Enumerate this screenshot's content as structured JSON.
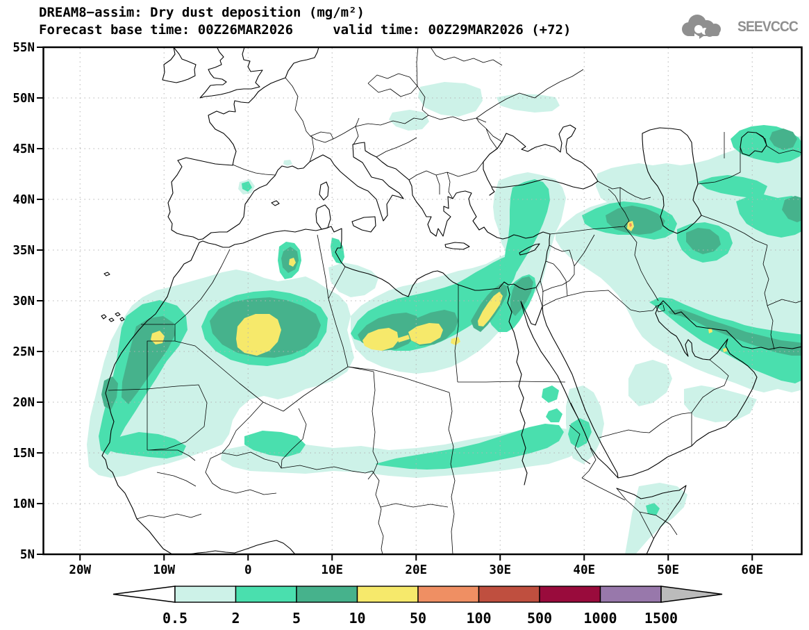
{
  "header": {
    "title_line1": "DREAM8−assim: Dry dust deposition (mg/m²)",
    "title_line2": "Forecast base time: 00Z26MAR2026     valid time: 00Z29MAR2026 (+72)",
    "logo_text": "SEEVCCC"
  },
  "map": {
    "lat_ticks": [
      {
        "label": "55N",
        "deg": 55
      },
      {
        "label": "50N",
        "deg": 50
      },
      {
        "label": "45N",
        "deg": 45
      },
      {
        "label": "40N",
        "deg": 40
      },
      {
        "label": "35N",
        "deg": 35
      },
      {
        "label": "30N",
        "deg": 30
      },
      {
        "label": "25N",
        "deg": 25
      },
      {
        "label": "20N",
        "deg": 20
      },
      {
        "label": "15N",
        "deg": 15
      },
      {
        "label": "10N",
        "deg": 10
      },
      {
        "label": "5N",
        "deg": 5
      }
    ],
    "lon_ticks": [
      {
        "label": "20W",
        "deg": -20
      },
      {
        "label": "10W",
        "deg": -10
      },
      {
        "label": "0",
        "deg": 0
      },
      {
        "label": "10E",
        "deg": 10
      },
      {
        "label": "20E",
        "deg": 20
      },
      {
        "label": "30E",
        "deg": 30
      },
      {
        "label": "40E",
        "deg": 40
      },
      {
        "label": "50E",
        "deg": 50
      },
      {
        "label": "60E",
        "deg": 60
      }
    ]
  },
  "colorbar": {
    "levels": [
      "0.5",
      "2",
      "5",
      "10",
      "50",
      "100",
      "500",
      "1000",
      "1500"
    ],
    "segment_colors": [
      "#cdf2e8",
      "#4adfae",
      "#46b28c",
      "#f6e96b",
      "#ef8f63",
      "#bf4f3f",
      "#990b3c",
      "#9878ab"
    ],
    "under_color": "#ffffff",
    "over_color": "#bbbbbb"
  },
  "chart_data": {
    "type": "filled_contour_map",
    "title": "DREAM8−assim: Dry dust deposition (mg/m²)",
    "variable": "Dry dust deposition",
    "units": "mg/m²",
    "model": "DREAM8−assim",
    "forecast_base_time": "00Z26MAR2026",
    "valid_time": "00Z29MAR2026",
    "lead": "+72",
    "extent": {
      "lon_min": -24.4,
      "lon_max": 66,
      "lat_min": 5,
      "lat_max": 55
    },
    "contour_levels": [
      0.5,
      2,
      5,
      10,
      50,
      100,
      500,
      1000,
      1500
    ],
    "palette": [
      "#cdf2e8",
      "#4adfae",
      "#46b28c",
      "#f6e96b",
      "#ef8f63",
      "#bf4f3f",
      "#990b3c",
      "#9878ab"
    ],
    "grid": {
      "lat_interval_deg": 5,
      "lon_interval_deg": 10,
      "style": "dotted"
    },
    "features": [
      {
        "region": "Central Algerian Sahara (2W–4E, 24–29N)",
        "peak_level": "10–50"
      },
      {
        "region": "Western Sahara / Mauritania border (11W, 26–27N)",
        "peak_level": "10–50"
      },
      {
        "region": "Northern Algeria Atlas (4–6E, 35–36N)",
        "peak_level": "10–50"
      },
      {
        "region": "Central Libya band (13–23E, 24–27N)",
        "peak_level": "10–50"
      },
      {
        "region": "Nile valley, Egypt (28–30E, 28–31N)",
        "peak_level": "10–50"
      },
      {
        "region": "Turkey–Iraq–Iran border (44–45E, 37N)",
        "peak_level": "50–100 spot"
      },
      {
        "region": "Persian Gulf / Gulf of Oman coasts",
        "peak_level": "5–10 with 10–50 spots"
      },
      {
        "region": "Sahel band (15W–38E, 12–16N)",
        "peak_level": "2–5"
      },
      {
        "region": "NE Iraq / NW Iran and Caspian–Aral region",
        "peak_level": "5–10"
      },
      {
        "region": "Eastern Mediterranean / Levant / central Turkey",
        "peak_level": "2–5"
      },
      {
        "region": "Europe, central Saudi interior, most oceans",
        "peak_level": "below 0.5 (white)"
      }
    ]
  }
}
